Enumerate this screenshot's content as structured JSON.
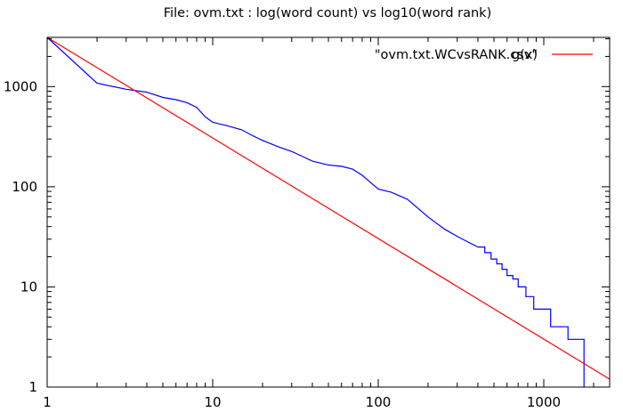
{
  "chart_data": {
    "type": "line",
    "title": "File: ovm.txt : log(word count) vs log10(word rank)",
    "xlabel": "",
    "ylabel": "",
    "x_scale": "log",
    "y_scale": "log",
    "xlim": [
      1,
      2500
    ],
    "ylim": [
      1,
      3100
    ],
    "grid": false,
    "legend_position": "top-right",
    "x_ticks": [
      {
        "value": 1,
        "label": "1"
      },
      {
        "value": 10,
        "label": "10"
      },
      {
        "value": 100,
        "label": "100"
      },
      {
        "value": 1000,
        "label": "1000"
      }
    ],
    "y_ticks": [
      {
        "value": 1,
        "label": "1"
      },
      {
        "value": 10,
        "label": "10"
      },
      {
        "value": 100,
        "label": "100"
      },
      {
        "value": 1000,
        "label": "1000"
      }
    ],
    "series": [
      {
        "name": "\"ovm.txt.WCvsRANK.csv\"",
        "color": "#0000ff",
        "step": false,
        "x": [
          1,
          2,
          3,
          4,
          5,
          6,
          7,
          8,
          9,
          10,
          12,
          15,
          17,
          20,
          25,
          30,
          35,
          40,
          50,
          60,
          70,
          80,
          90,
          100,
          120,
          150,
          200,
          250,
          300,
          350,
          400
        ],
        "y": [
          3100,
          1080,
          940,
          880,
          780,
          740,
          690,
          620,
          500,
          440,
          410,
          370,
          330,
          290,
          250,
          225,
          200,
          180,
          165,
          160,
          150,
          130,
          110,
          95,
          88,
          75,
          50,
          38,
          32,
          28,
          25
        ]
      },
      {
        "name": "",
        "color": "#0000ff",
        "step": true,
        "x": [
          400,
          440,
          480,
          520,
          560,
          600,
          650,
          700,
          780,
          870,
          1100,
          1400,
          1750,
          1750
        ],
        "y": [
          25,
          22,
          19,
          17,
          15,
          13,
          12,
          10,
          8,
          6,
          4,
          3,
          2,
          1
        ]
      },
      {
        "name": "g(x)",
        "color": "#ff0000",
        "step": false,
        "x": [
          1,
          2500
        ],
        "y": [
          3100,
          1.2
        ]
      }
    ]
  }
}
